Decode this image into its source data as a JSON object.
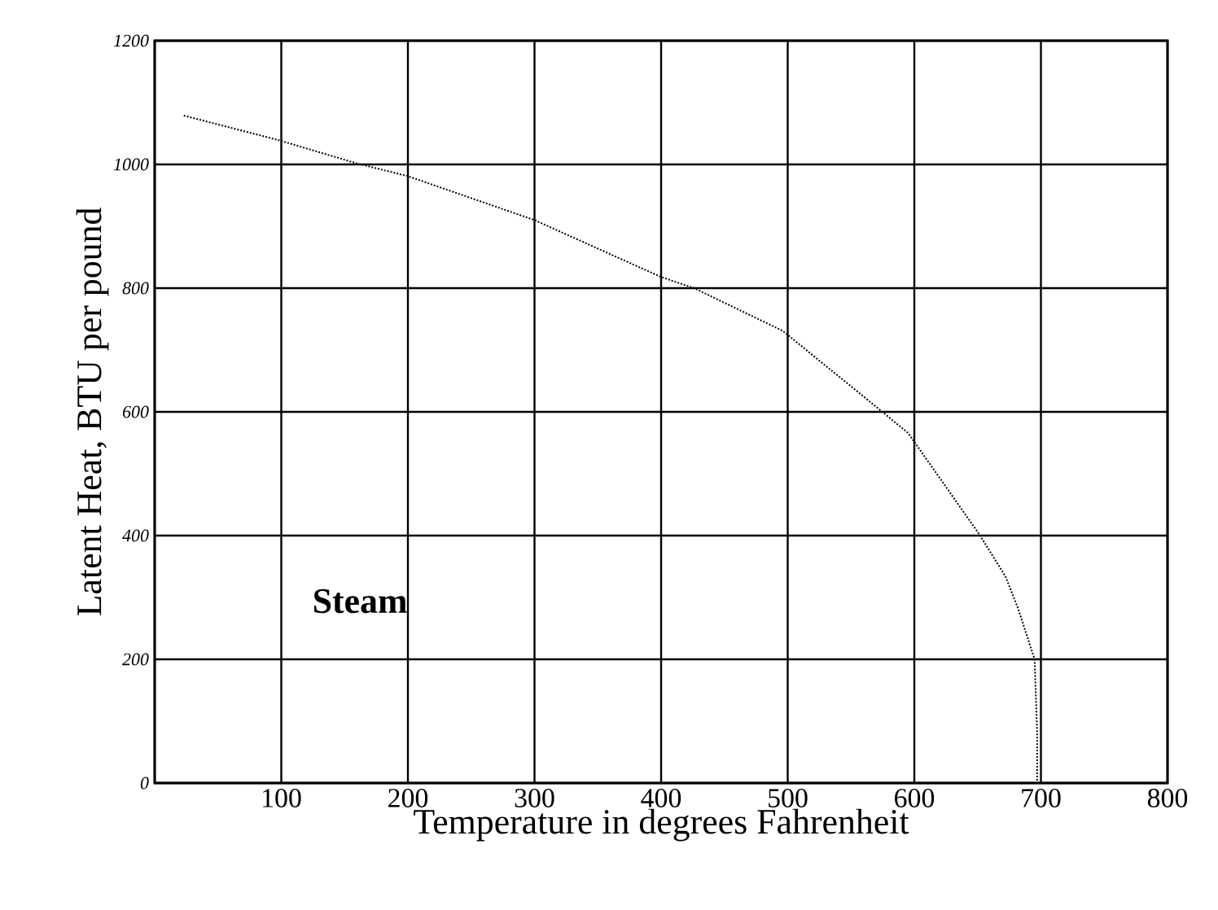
{
  "chart_data": {
    "type": "line",
    "xlabel": "Temperature in degrees Fahrenheit",
    "ylabel": "Latent Heat, BTU per pound",
    "x": [
      23,
      100,
      159,
      200,
      300,
      400,
      426,
      496,
      564,
      595,
      651,
      672,
      682,
      695,
      697,
      697
    ],
    "series": [
      {
        "name": "Steam",
        "color": "#000000",
        "values": [
          1079,
          1038,
          1002,
          981,
          910,
          818,
          800,
          731,
          618,
          566,
          403,
          334,
          282,
          200,
          82,
          0
        ]
      }
    ],
    "xlim": [
      0,
      800
    ],
    "ylim": [
      0,
      1200
    ],
    "xticks": [
      {
        "value": 0,
        "label": null
      },
      100,
      200,
      300,
      400,
      500,
      600,
      700,
      800
    ],
    "yticks": [
      0,
      200,
      400,
      600,
      800,
      1000,
      1200
    ],
    "grid": true,
    "line_style": "dotted",
    "marker": "none"
  }
}
